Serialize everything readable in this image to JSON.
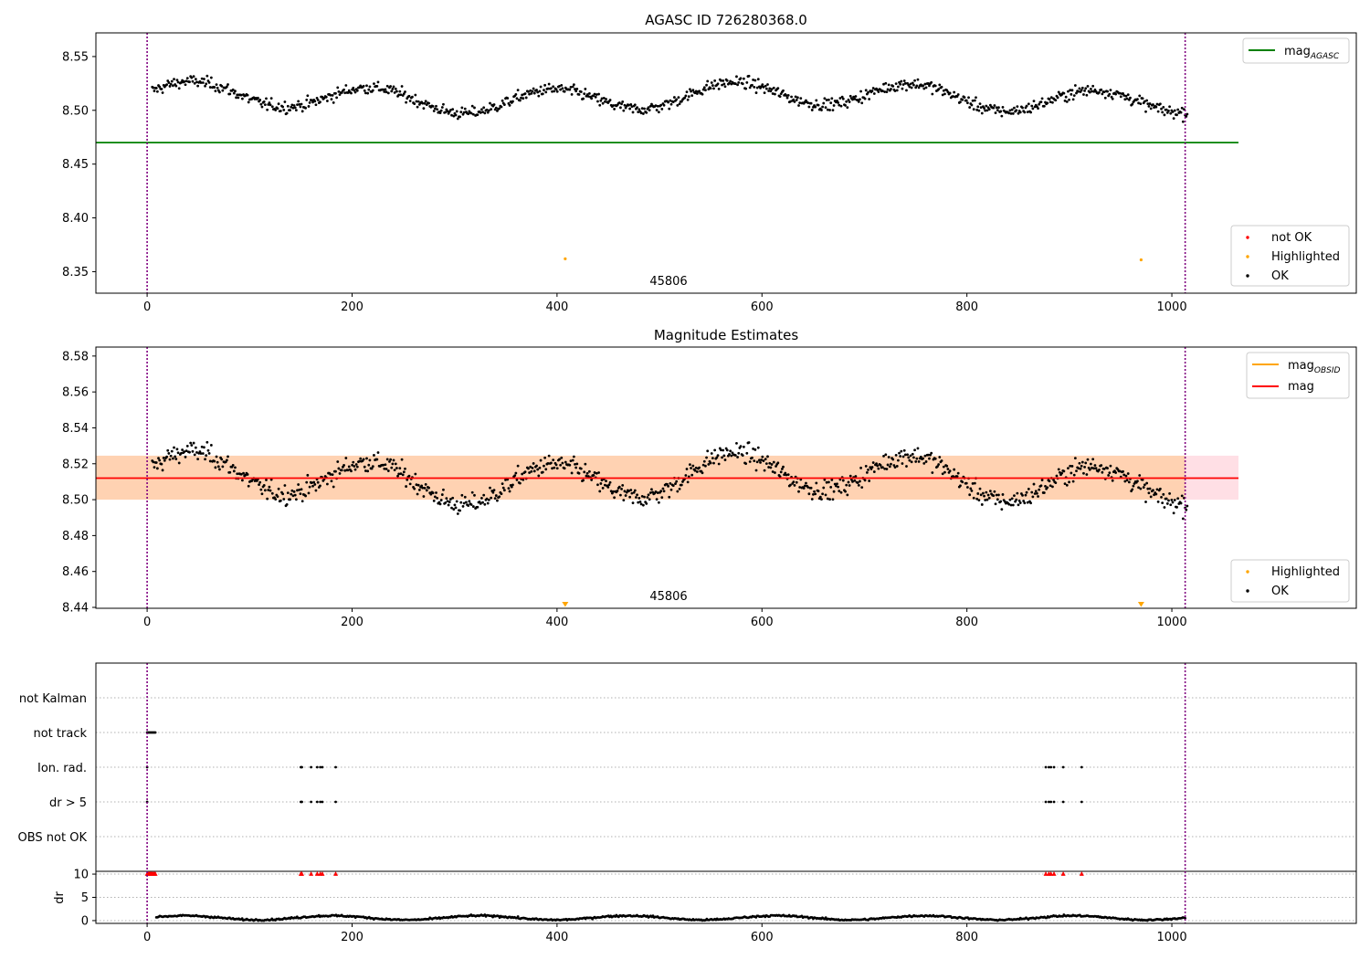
{
  "chart_data": [
    {
      "type": "scatter",
      "title": "AGASC ID 726280368.0",
      "xlim": [
        -50,
        1180
      ],
      "ylim": [
        8.33,
        8.572
      ],
      "xticks": [
        0,
        200,
        400,
        600,
        800,
        1000
      ],
      "yticks": [
        8.35,
        8.4,
        8.45,
        8.5,
        8.55
      ],
      "ytick_labels": [
        "8.35",
        "8.40",
        "8.45",
        "8.50",
        "8.55"
      ],
      "vlines": [
        0,
        1013
      ],
      "annotation": "45806",
      "hline": {
        "label": "mag",
        "label_sub": "AGASC",
        "value": 8.47,
        "x_range": [
          -50,
          1065
        ],
        "color": "#008000"
      },
      "legend_top": [
        {
          "label": "mag",
          "sub": "AGASC",
          "color": "#008000"
        }
      ],
      "legend_bottom": [
        {
          "label": "not OK",
          "color": "#ff0000"
        },
        {
          "label": "Highlighted",
          "color": "#ffa500"
        },
        {
          "label": "OK",
          "color": "#000000"
        }
      ],
      "highlighted_points": [
        {
          "x": 408,
          "y": 8.362
        },
        {
          "x": 970,
          "y": 8.361
        }
      ],
      "ok_series": {
        "x_range": [
          5,
          1015
        ],
        "count": 1000,
        "median": 8.512,
        "amplitude": 0.012,
        "noise": 0.006
      }
    },
    {
      "type": "scatter",
      "title": "Magnitude Estimates",
      "xlim": [
        -50,
        1180
      ],
      "ylim": [
        8.4395,
        8.585
      ],
      "xticks": [
        0,
        200,
        400,
        600,
        800,
        1000
      ],
      "yticks": [
        8.44,
        8.46,
        8.48,
        8.5,
        8.52,
        8.54,
        8.56,
        8.58
      ],
      "ytick_labels": [
        "8.44",
        "8.46",
        "8.48",
        "8.50",
        "8.52",
        "8.54",
        "8.56",
        "8.58"
      ],
      "vlines": [
        0,
        1013
      ],
      "annotation": "45806",
      "mag_line": {
        "value": 8.512,
        "color": "#ff0000"
      },
      "band": {
        "y_range": [
          8.5,
          8.5245
        ],
        "x_range": [
          -50,
          1065
        ],
        "color": "#ffc0cb"
      },
      "obsid_band": {
        "y_range": [
          8.5,
          8.5245
        ],
        "x_range": [
          -50,
          1013
        ],
        "color": "#ffa500"
      },
      "legend_top": [
        {
          "label": "mag",
          "sub": "OBSID",
          "color": "#ffa500"
        },
        {
          "label": "mag",
          "sub": "",
          "color": "#ff0000"
        }
      ],
      "legend_bottom": [
        {
          "label": "Highlighted",
          "color": "#ffa500"
        },
        {
          "label": "OK",
          "color": "#000000"
        }
      ],
      "highlighted_markers": [
        {
          "x": 408
        },
        {
          "x": 970
        }
      ]
    },
    {
      "type": "scatter",
      "title": "",
      "xlim": [
        -50,
        1180
      ],
      "xticks": [
        0,
        200,
        400,
        600,
        800,
        1000
      ],
      "vlines": [
        0,
        1013
      ],
      "flag_rows": [
        "not Kalman",
        "not track",
        "Ion. rad.",
        "dr > 5",
        "OBS not OK"
      ],
      "flags": {
        "not track": [
          0,
          1,
          2,
          3,
          4,
          5,
          6,
          7,
          8
        ],
        "Ion. rad.": [
          0,
          150,
          151,
          160,
          166,
          169,
          171,
          184,
          877,
          880,
          882,
          885,
          894,
          912
        ],
        "dr > 5": [
          0,
          150,
          151,
          160,
          166,
          169,
          171,
          184,
          877,
          880,
          882,
          885,
          894,
          912
        ]
      },
      "dr": {
        "ylabel": "dr",
        "yticks": [
          0,
          5,
          10
        ],
        "ylim": [
          -0.6,
          10.6
        ],
        "threshold": 10,
        "above_threshold_x": [
          0,
          1,
          2,
          3,
          4,
          5,
          6,
          7,
          8,
          150,
          151,
          160,
          166,
          169,
          171,
          184,
          877,
          880,
          882,
          885,
          894,
          912
        ],
        "series_x_range": [
          9,
          1013
        ],
        "typical": 0.6
      }
    }
  ]
}
